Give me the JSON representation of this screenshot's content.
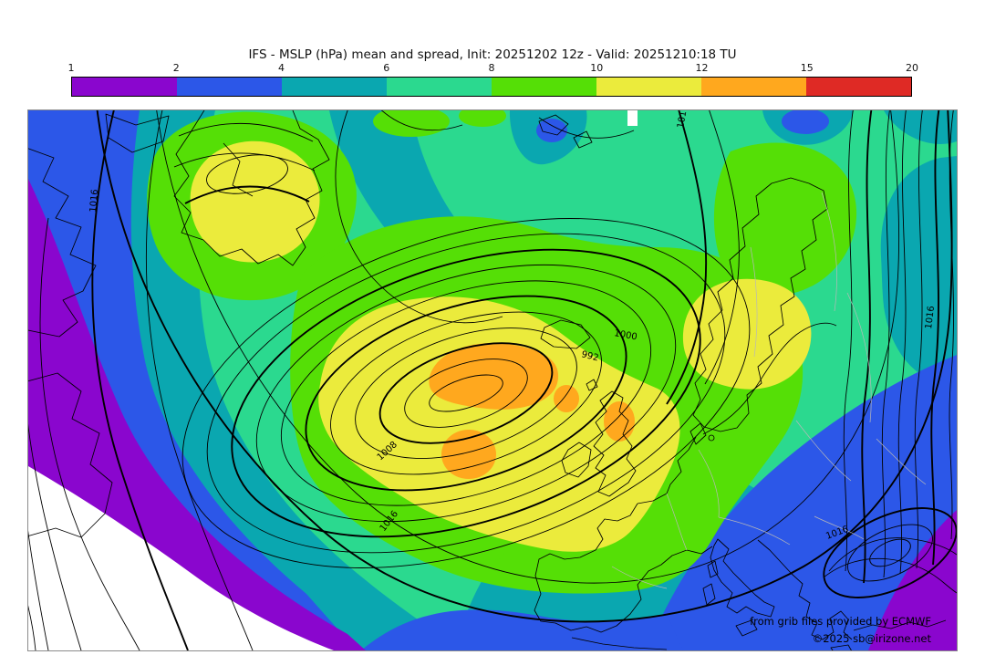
{
  "title": "IFS - MSLP (hPa) mean and spread, Init: 20251202 12z - Valid: 20251210:18 TU",
  "colorbar": {
    "ticks": [
      "1",
      "2",
      "4",
      "6",
      "8",
      "10",
      "12",
      "15",
      "20"
    ],
    "colors": [
      "#8A06CE",
      "#2C57E8",
      "#0AA7B0",
      "#2BD98F",
      "#55DF06",
      "#EBEB3C",
      "#FFA81E",
      "#DF2A25"
    ]
  },
  "map": {
    "contour_labels": [
      "1016",
      "1000",
      "992",
      "1008",
      "1016",
      "1016",
      "1016",
      "1016"
    ],
    "attribution": {
      "line1": "from grib files provided by ECMWF",
      "line2": "©2025 sb@irizone.net"
    }
  },
  "chart_data": {
    "type": "heatmap",
    "title": "IFS - MSLP (hPa) mean and spread, Init: 20251202 12z - Valid: 20251210:18 TU",
    "model": "IFS",
    "variable": "MSLP (hPa) mean and spread",
    "init": "20251202 12z",
    "valid": "20251210:18 TU",
    "colorbar": {
      "meaning": "ensemble spread (hPa)",
      "tick_values": [
        1,
        2,
        4,
        6,
        8,
        10,
        12,
        15,
        20
      ],
      "segment_colors": [
        "#8A06CE",
        "#2C57E8",
        "#0AA7B0",
        "#2BD98F",
        "#55DF06",
        "#EBEB3C",
        "#FFA81E",
        "#DF2A25"
      ],
      "segment_ranges": [
        [
          1,
          2
        ],
        [
          2,
          4
        ],
        [
          4,
          6
        ],
        [
          6,
          8
        ],
        [
          8,
          10
        ],
        [
          10,
          12
        ],
        [
          12,
          15
        ],
        [
          15,
          20
        ]
      ]
    },
    "contours": {
      "field": "MSLP ensemble mean (hPa)",
      "labeled_levels": [
        992,
        1000,
        1008,
        1016
      ]
    },
    "features": [
      "deep elongated low over the North Atlantic west of the British Isles with closed contours down to below 992 hPa",
      "maximum spread 12-15 hPa (orange) in the core of the Atlantic low and near the North Sea",
      "spread 10-12 hPa (yellow) over Greenland and southern Scandinavia",
      "spread below 1-2 hPa (white/purple) in the southwest corner and over southeastern Europe/Turkey",
      "closed 1016 hPa high near the Black Sea / Turkey"
    ],
    "attribution": [
      "from grib files provided by ECMWF",
      "©2025 sb@irizone.net"
    ]
  }
}
